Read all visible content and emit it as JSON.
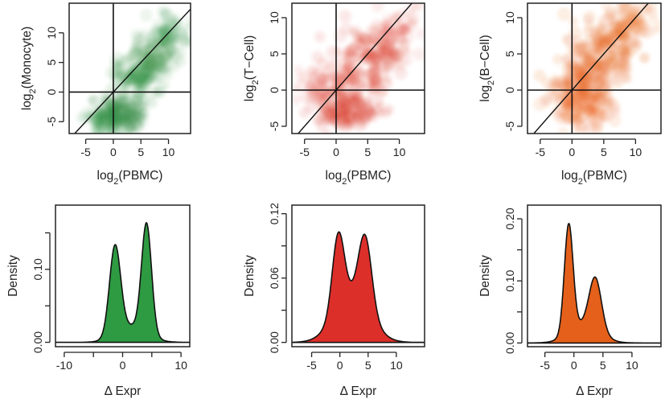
{
  "chart_data": [
    {
      "type": "scatter",
      "subtype": "density-scatter",
      "id": "sc_mono",
      "color": "#2e8b3e",
      "xlabel_base": "log",
      "xlabel_sub": "2",
      "xlabel_rest": "(PBMC)",
      "ylabel_base": "log",
      "ylabel_sub": "2",
      "ylabel_rest": "(Monocyte)",
      "xlim": [
        -8,
        14
      ],
      "ylim": [
        -7,
        15
      ],
      "xticks": [
        -5,
        0,
        5,
        10
      ],
      "yticks": [
        -5,
        0,
        5,
        10
      ],
      "reference_lines": [
        "x = 0",
        "y = 0",
        "y = x"
      ],
      "clusters": [
        {
          "x": 1.5,
          "y": -3.5,
          "sx": 2.2,
          "sy": 1.6,
          "a": 0.9
        },
        {
          "x": 4.5,
          "y": 2.5,
          "sx": 2.6,
          "sy": 2.0,
          "a": 0.75
        },
        {
          "x": 7.5,
          "y": 6.5,
          "sx": 2.2,
          "sy": 1.8,
          "a": 0.55
        },
        {
          "x": 10.0,
          "y": 10.0,
          "sx": 1.8,
          "sy": 1.6,
          "a": 0.35
        },
        {
          "x": -1.5,
          "y": -5.0,
          "sx": 1.8,
          "sy": 1.2,
          "a": 0.35
        }
      ]
    },
    {
      "type": "scatter",
      "subtype": "density-scatter",
      "id": "sc_tcell",
      "color": "#d93a2b",
      "xlabel_base": "log",
      "xlabel_sub": "2",
      "xlabel_rest": "(PBMC)",
      "ylabel_base": "log",
      "ylabel_sub": "2",
      "ylabel_rest": "(T−Cell)",
      "xlim": [
        -7,
        14
      ],
      "ylim": [
        -6,
        12
      ],
      "xticks": [
        -5,
        0,
        5,
        10
      ],
      "yticks": [
        -5,
        0,
        5,
        10
      ],
      "reference_lines": [
        "x = 0",
        "y = 0",
        "y = x"
      ],
      "clusters": [
        {
          "x": 1.5,
          "y": -3.0,
          "sx": 2.4,
          "sy": 1.3,
          "a": 0.9
        },
        {
          "x": 3.5,
          "y": 2.5,
          "sx": 3.0,
          "sy": 2.6,
          "a": 0.7
        },
        {
          "x": 6.5,
          "y": 5.5,
          "sx": 2.6,
          "sy": 2.2,
          "a": 0.5
        },
        {
          "x": 9.5,
          "y": 8.0,
          "sx": 1.8,
          "sy": 1.8,
          "a": 0.3
        },
        {
          "x": -2.5,
          "y": 0.5,
          "sx": 2.0,
          "sy": 1.5,
          "a": 0.3
        }
      ]
    },
    {
      "type": "scatter",
      "subtype": "density-scatter",
      "id": "sc_bcell",
      "color": "#e8661d",
      "xlabel_base": "log",
      "xlabel_sub": "2",
      "xlabel_rest": "(PBMC)",
      "ylabel_base": "log",
      "ylabel_sub": "2",
      "ylabel_rest": "(B−Cell)",
      "xlim": [
        -7,
        14
      ],
      "ylim": [
        -6,
        12
      ],
      "xticks": [
        -5,
        0,
        5,
        10
      ],
      "yticks": [
        -5,
        0,
        5,
        10
      ],
      "reference_lines": [
        "x = 0",
        "y = 0",
        "y = x"
      ],
      "clusters": [
        {
          "x": 1.0,
          "y": 0.5,
          "sx": 2.2,
          "sy": 1.8,
          "a": 0.85
        },
        {
          "x": 4.0,
          "y": 3.5,
          "sx": 2.4,
          "sy": 2.2,
          "a": 0.85
        },
        {
          "x": 6.5,
          "y": 7.0,
          "sx": 2.2,
          "sy": 2.0,
          "a": 0.65
        },
        {
          "x": 1.5,
          "y": -3.0,
          "sx": 2.2,
          "sy": 1.2,
          "a": 0.55
        },
        {
          "x": 9.5,
          "y": 9.5,
          "sx": 1.8,
          "sy": 1.6,
          "a": 0.4
        }
      ]
    },
    {
      "type": "area",
      "subtype": "density",
      "id": "dn_mono",
      "color": "#2e9a42",
      "xlabel": "Δ Expr",
      "ylabel": "Density",
      "xlim": [
        -11.5,
        11.5
      ],
      "ylim": [
        -0.006,
        0.188
      ],
      "xticks": [
        -10,
        -5,
        0,
        5,
        10
      ],
      "xtick_labels": [
        "-10",
        "",
        "0",
        "",
        "10"
      ],
      "yticks": [
        0.0,
        0.05,
        0.1,
        0.15
      ],
      "ytick_labels": [
        "0.00",
        "",
        "0.10",
        ""
      ],
      "peaks": [
        {
          "mu": -1.3,
          "sd": 0.95,
          "h": 0.122
        },
        {
          "mu": 4.1,
          "sd": 0.85,
          "h": 0.15
        },
        {
          "mu": 1.6,
          "sd": 2.6,
          "h": 0.022
        }
      ]
    },
    {
      "type": "area",
      "subtype": "density",
      "id": "dn_tcell",
      "color": "#dd2f2a",
      "xlabel": "Δ Expr",
      "ylabel": "Density",
      "xlim": [
        -8.5,
        15
      ],
      "ylim": [
        -0.004,
        0.128
      ],
      "xticks": [
        -5,
        0,
        5,
        10
      ],
      "xtick_labels": [
        "-5",
        "0",
        "5",
        "10"
      ],
      "yticks": [
        0.0,
        0.03,
        0.06,
        0.09,
        0.12
      ],
      "ytick_labels": [
        "0.00",
        "",
        "0.06",
        "",
        "0.12"
      ],
      "peaks": [
        {
          "mu": -0.3,
          "sd": 1.05,
          "h": 0.07
        },
        {
          "mu": 4.5,
          "sd": 1.15,
          "h": 0.066
        },
        {
          "mu": 2.2,
          "sd": 3.1,
          "h": 0.045
        }
      ]
    },
    {
      "type": "area",
      "subtype": "density",
      "id": "dn_bcell",
      "color": "#e5601a",
      "xlabel": "Δ Expr",
      "ylabel": "Density",
      "xlim": [
        -8,
        15
      ],
      "ylim": [
        -0.006,
        0.222
      ],
      "xticks": [
        -5,
        0,
        5,
        10
      ],
      "xtick_labels": [
        "-5",
        "0",
        "5",
        "10"
      ],
      "yticks": [
        0.0,
        0.05,
        0.1,
        0.15,
        0.2
      ],
      "ytick_labels": [
        "0.00",
        "",
        "0.10",
        "",
        "0.20"
      ],
      "peaks": [
        {
          "mu": -0.9,
          "sd": 0.75,
          "h": 0.175
        },
        {
          "mu": 3.7,
          "sd": 1.05,
          "h": 0.083
        },
        {
          "mu": 1.8,
          "sd": 2.6,
          "h": 0.03
        }
      ]
    }
  ]
}
